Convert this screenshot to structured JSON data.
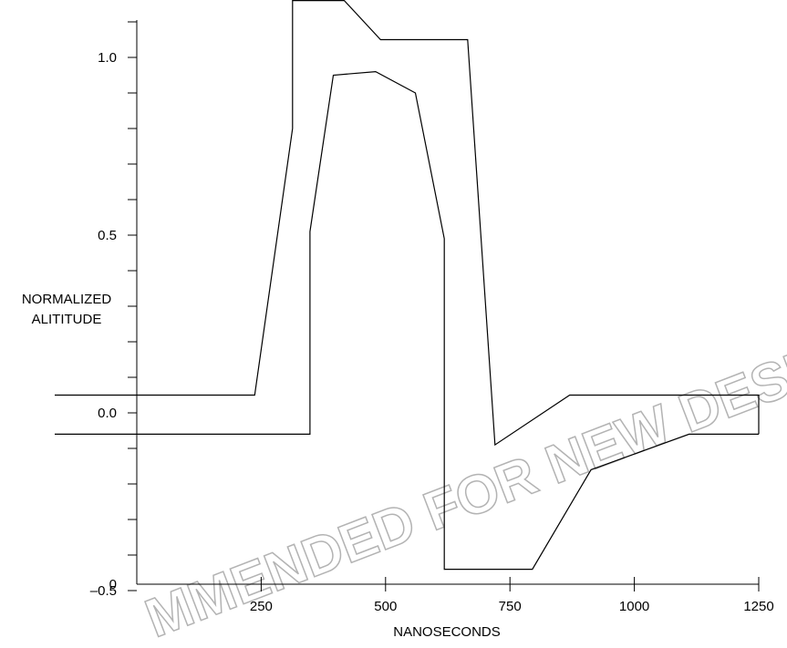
{
  "chart_data": {
    "type": "line",
    "title": "",
    "xlabel": "NANOSECONDS",
    "ylabel_lines": [
      "NORMALIZED",
      "ALITITUDE"
    ],
    "xlim": [
      0,
      1250
    ],
    "ylim": [
      -0.56,
      1.15
    ],
    "x_ticks": [
      {
        "value": 250,
        "label": "250"
      },
      {
        "value": 500,
        "label": "500"
      },
      {
        "value": 750,
        "label": "750"
      },
      {
        "value": 1000,
        "label": "1000"
      },
      {
        "value": 1250,
        "label": "1250"
      }
    ],
    "y_ticks_labeled": [
      {
        "value": 1.0,
        "label": "1.0"
      },
      {
        "value": 0.5,
        "label": "0.5"
      },
      {
        "value": 0.0,
        "label": "0.0"
      },
      {
        "value": -0.5,
        "label": "–0.5"
      }
    ],
    "y_origin_label": "0",
    "y_minor_ticks": [
      1.1,
      0.9,
      0.8,
      0.7,
      0.6,
      0.4,
      0.3,
      0.2,
      0.1,
      -0.1,
      -0.2,
      -0.3,
      -0.4
    ],
    "grid": false,
    "series": [
      {
        "x": [
          -165,
          237,
          313,
          313,
          417,
          490,
          665,
          720,
          870,
          1250,
          1250
        ],
        "y": [
          0.05,
          0.05,
          0.8,
          1.16,
          1.16,
          1.05,
          1.05,
          -0.09,
          0.05,
          0.05,
          -0.06
        ],
        "color": "#000000"
      },
      {
        "x": [
          -165,
          348,
          348,
          395,
          480,
          560,
          618,
          618,
          795,
          913,
          1110,
          1250
        ],
        "y": [
          -0.06,
          -0.06,
          0.51,
          0.95,
          0.96,
          0.9,
          0.49,
          -0.44,
          -0.44,
          -0.16,
          -0.06,
          -0.06
        ],
        "color": "#000000"
      }
    ]
  },
  "watermark": {
    "text": "MMENDED FOR NEW DESIG",
    "color": "#b3b3b3"
  }
}
